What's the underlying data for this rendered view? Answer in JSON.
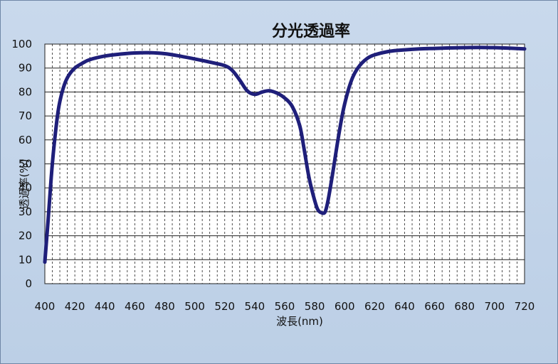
{
  "chart_data": {
    "type": "line",
    "title": "分光透過率",
    "xlabel": "波長(nm)",
    "ylabel": "透過率(%)",
    "xlim": [
      400,
      720
    ],
    "ylim": [
      0,
      100
    ],
    "x_ticks": [
      400,
      420,
      440,
      460,
      480,
      500,
      520,
      540,
      560,
      580,
      600,
      620,
      640,
      660,
      680,
      700,
      720
    ],
    "y_ticks": [
      0,
      10,
      20,
      30,
      40,
      50,
      60,
      70,
      80,
      90,
      100
    ],
    "grid": {
      "x_minor_step": 5,
      "y_step": 10
    },
    "legend": "none",
    "series": [
      {
        "color": "#1f1f7a",
        "x": [
          400,
          402,
          405,
          408,
          410,
          413,
          416,
          420,
          425,
          430,
          440,
          450,
          460,
          470,
          480,
          490,
          500,
          510,
          520,
          525,
          530,
          535,
          540,
          545,
          550,
          555,
          560,
          565,
          570,
          573,
          576,
          579,
          582,
          585,
          587,
          589,
          592,
          595,
          598,
          600,
          603,
          606,
          610,
          615,
          620,
          630,
          640,
          650,
          660,
          670,
          680,
          690,
          700,
          710,
          720
        ],
        "y": [
          9,
          25,
          50,
          68,
          76,
          83,
          87,
          90,
          92,
          93.5,
          95,
          95.8,
          96.3,
          96.4,
          96,
          95,
          93.8,
          92.5,
          91,
          89,
          85,
          80.5,
          79,
          80,
          80.5,
          79.5,
          77.5,
          74,
          66,
          56,
          45,
          37,
          31,
          29.5,
          30,
          35,
          46,
          58,
          69,
          75,
          82,
          87,
          91,
          94,
          95.5,
          97,
          97.6,
          98,
          98.2,
          98.4,
          98.5,
          98.6,
          98.5,
          98.3,
          98
        ]
      }
    ]
  }
}
